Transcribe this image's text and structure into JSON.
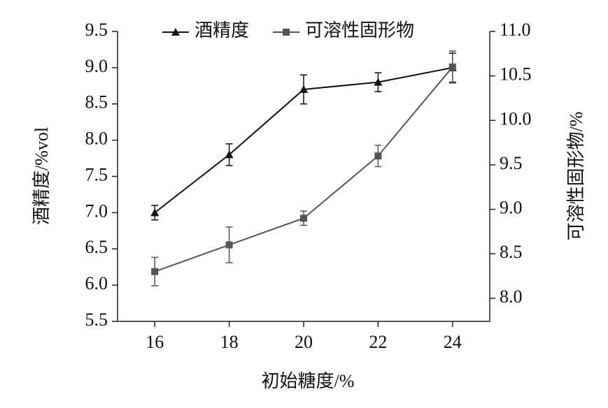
{
  "chart_data": {
    "type": "line",
    "x_label": "初始糖度/%",
    "y_label": "酒精度/%vol",
    "y2_label": "可溶性固形物/%",
    "x": [
      16,
      18,
      20,
      22,
      24
    ],
    "xlim": [
      15,
      25
    ],
    "xticks": [
      16,
      18,
      20,
      22,
      24
    ],
    "ylim": [
      5.5,
      9.5
    ],
    "yticks": [
      {
        "value": 5.5,
        "label": "5.5"
      },
      {
        "value": 6.0,
        "label": "6.0"
      },
      {
        "value": 6.5,
        "label": "6.5"
      },
      {
        "value": 7.0,
        "label": "7.0"
      },
      {
        "value": 7.5,
        "label": "7.5"
      },
      {
        "value": 8.0,
        "label": "8.0"
      },
      {
        "value": 8.5,
        "label": "8.5"
      },
      {
        "value": 9.0,
        "label": "9.0"
      },
      {
        "value": 9.5,
        "label": "9.5"
      }
    ],
    "y2lim": [
      7.74,
      11.0
    ],
    "y2ticks": [
      {
        "value": 8.0,
        "label": "8.0"
      },
      {
        "value": 8.5,
        "label": "8.5"
      },
      {
        "value": 9.0,
        "label": "9.0"
      },
      {
        "value": 9.5,
        "label": "9.5"
      },
      {
        "value": 10.0,
        "label": "10.0"
      },
      {
        "value": 10.5,
        "label": "10.5"
      },
      {
        "value": 11.0,
        "label": "11.0"
      }
    ],
    "legend": "top",
    "series": [
      {
        "name": "酒精度",
        "color": "#111111",
        "marker": "triangle",
        "axis": "y",
        "values": [
          7.0,
          7.8,
          8.7,
          8.8,
          9.0
        ],
        "errors": [
          0.1,
          0.15,
          0.2,
          0.13,
          0.2
        ]
      },
      {
        "name": "可溶性固形物",
        "color": "#555555",
        "marker": "square",
        "axis": "y2",
        "values": [
          8.3,
          8.6,
          8.9,
          9.6,
          10.6
        ],
        "errors": [
          0.16,
          0.2,
          0.08,
          0.12,
          0.18
        ]
      }
    ]
  }
}
